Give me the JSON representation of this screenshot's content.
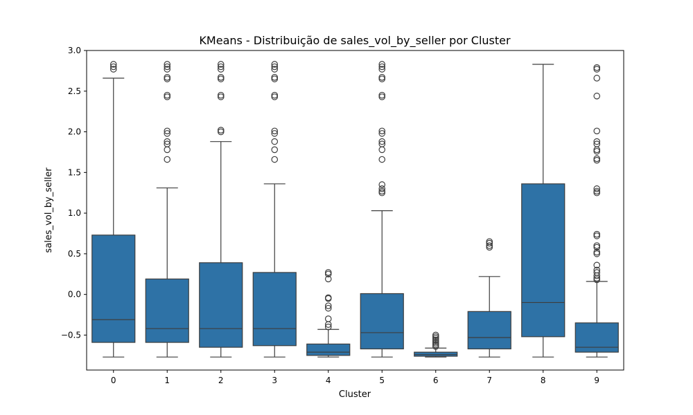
{
  "chart_data": {
    "type": "box",
    "title": "KMeans - Distribuição de sales_vol_by_seller por Cluster",
    "xlabel": "Cluster",
    "ylabel": "sales_vol_by_seller",
    "categories": [
      "0",
      "1",
      "2",
      "3",
      "4",
      "5",
      "6",
      "7",
      "8",
      "9"
    ],
    "ylim": [
      -0.93,
      3.0
    ],
    "yticks": [
      -0.5,
      0.0,
      0.5,
      1.0,
      1.5,
      2.0,
      2.5,
      3.0
    ],
    "ytick_labels": [
      "−0.5",
      "0.0",
      "0.5",
      "1.0",
      "1.5",
      "2.0",
      "2.5",
      "3.0"
    ],
    "box_color": "#2e72a6",
    "grid": false,
    "series": [
      {
        "category": "0",
        "whisker_low": -0.77,
        "q1": -0.59,
        "median": -0.31,
        "q3": 0.73,
        "whisker_high": 2.66,
        "outliers": [
          2.77,
          2.8,
          2.83
        ]
      },
      {
        "category": "1",
        "whisker_low": -0.77,
        "q1": -0.59,
        "median": -0.42,
        "q3": 0.19,
        "whisker_high": 1.31,
        "outliers": [
          1.66,
          1.78,
          1.85,
          1.88,
          1.98,
          2.01,
          2.43,
          2.45,
          2.65,
          2.67,
          2.77,
          2.8,
          2.83
        ]
      },
      {
        "category": "2",
        "whisker_low": -0.77,
        "q1": -0.65,
        "median": -0.42,
        "q3": 0.39,
        "whisker_high": 1.88,
        "outliers": [
          2.0,
          2.02,
          2.43,
          2.45,
          2.65,
          2.67,
          2.77,
          2.8,
          2.83
        ]
      },
      {
        "category": "3",
        "whisker_low": -0.77,
        "q1": -0.63,
        "median": -0.42,
        "q3": 0.27,
        "whisker_high": 1.36,
        "outliers": [
          1.66,
          1.78,
          1.88,
          1.98,
          2.01,
          2.43,
          2.45,
          2.65,
          2.67,
          2.77,
          2.8,
          2.83
        ]
      },
      {
        "category": "4",
        "whisker_low": -0.77,
        "q1": -0.75,
        "median": -0.71,
        "q3": -0.61,
        "whisker_high": -0.43,
        "outliers": [
          -0.4,
          -0.37,
          -0.3,
          -0.17,
          -0.14,
          -0.05,
          -0.04,
          0.19,
          0.25,
          0.27
        ]
      },
      {
        "category": "5",
        "whisker_low": -0.77,
        "q1": -0.67,
        "median": -0.47,
        "q3": 0.01,
        "whisker_high": 1.03,
        "outliers": [
          1.25,
          1.27,
          1.3,
          1.35,
          1.66,
          1.78,
          1.85,
          1.88,
          1.98,
          2.01,
          2.43,
          2.45,
          2.65,
          2.67,
          2.77,
          2.8,
          2.83
        ]
      },
      {
        "category": "6",
        "whisker_low": -0.77,
        "q1": -0.76,
        "median": -0.74,
        "q3": -0.71,
        "whisker_high": -0.66,
        "outliers": [
          -0.64,
          -0.62,
          -0.6,
          -0.58,
          -0.56,
          -0.54,
          -0.52,
          -0.5
        ]
      },
      {
        "category": "7",
        "whisker_low": -0.77,
        "q1": -0.67,
        "median": -0.53,
        "q3": -0.21,
        "whisker_high": 0.22,
        "outliers": [
          0.58,
          0.6,
          0.63,
          0.65
        ]
      },
      {
        "category": "8",
        "whisker_low": -0.77,
        "q1": -0.52,
        "median": -0.1,
        "q3": 1.36,
        "whisker_high": 2.83,
        "outliers": []
      },
      {
        "category": "9",
        "whisker_low": -0.77,
        "q1": -0.71,
        "median": -0.65,
        "q3": -0.35,
        "whisker_high": 0.16,
        "outliers": [
          0.18,
          0.2,
          0.23,
          0.27,
          0.3,
          0.36,
          0.5,
          0.52,
          0.58,
          0.6,
          0.72,
          0.74,
          1.25,
          1.27,
          1.3,
          1.65,
          1.67,
          1.76,
          1.78,
          1.85,
          1.88,
          2.01,
          2.44,
          2.66,
          2.77,
          2.79
        ]
      }
    ]
  }
}
